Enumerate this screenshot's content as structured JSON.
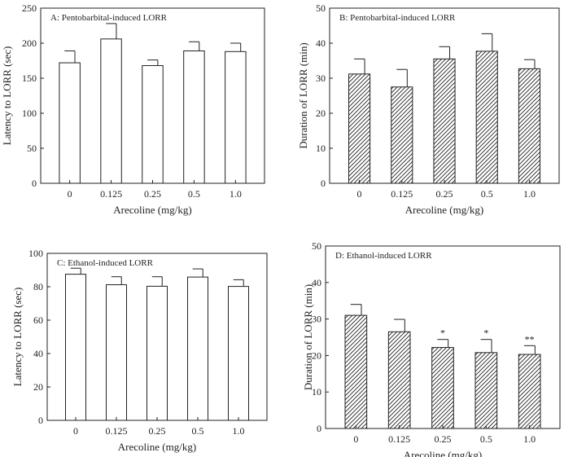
{
  "chart_data": [
    {
      "type": "bar",
      "panel": "A",
      "title": "A: Pentobarbital-induced LORR",
      "xlabel": "Arecoline (mg/kg)",
      "ylabel": "Latency  to  LORR  (sec)",
      "categories": [
        "0",
        "0.125",
        "0.25",
        "0.5",
        "1.0"
      ],
      "values": [
        172,
        206,
        168,
        189,
        188
      ],
      "errors": [
        17,
        22,
        8,
        13,
        12
      ],
      "significance": [
        "",
        "",
        "",
        "",
        ""
      ],
      "ylim": [
        0,
        250
      ],
      "yticks": [
        0,
        50,
        100,
        150,
        200,
        250
      ],
      "fill": "open"
    },
    {
      "type": "bar",
      "panel": "B",
      "title": "B: Pentobarbital-induced LORR",
      "xlabel": "Arecoline (mg/kg)",
      "ylabel": "Duration  of  LORR  (min)",
      "categories": [
        "0",
        "0.125",
        "0.25",
        "0.5",
        "1.0"
      ],
      "values": [
        31.2,
        27.5,
        35.5,
        37.7,
        32.7
      ],
      "errors": [
        4.3,
        5.0,
        3.5,
        5.0,
        2.6
      ],
      "significance": [
        "",
        "",
        "",
        "",
        ""
      ],
      "ylim": [
        0,
        50
      ],
      "yticks": [
        0,
        10,
        20,
        30,
        40,
        50
      ],
      "fill": "hatched"
    },
    {
      "type": "bar",
      "panel": "C",
      "title": "C: Ethanol-induced LORR",
      "xlabel": "Arecoline (mg/kg)",
      "ylabel": "Latency  to  LORR  (sec)",
      "categories": [
        "0",
        "0.125",
        "0.25",
        "0.5",
        "1.0"
      ],
      "values": [
        87.5,
        81.2,
        80.3,
        85.8,
        80.2
      ],
      "errors": [
        3.6,
        4.8,
        5.7,
        4.9,
        4.0
      ],
      "significance": [
        "",
        "",
        "",
        "",
        ""
      ],
      "ylim": [
        0,
        100
      ],
      "yticks": [
        0,
        20,
        40,
        60,
        80,
        100
      ],
      "fill": "open"
    },
    {
      "type": "bar",
      "panel": "D",
      "title": "D: Ethanol-induced LORR",
      "xlabel": "Arecoline (mg/kg)",
      "ylabel": "Duration  of  LORR  (min)",
      "categories": [
        "0",
        "0.125",
        "0.25",
        "0.5",
        "1.0"
      ],
      "values": [
        31.0,
        26.5,
        22.2,
        20.8,
        20.3
      ],
      "errors": [
        3.0,
        3.4,
        2.2,
        3.6,
        2.4
      ],
      "significance": [
        "",
        "",
        "*",
        "*",
        "**"
      ],
      "ylim": [
        0,
        50
      ],
      "yticks": [
        0,
        10,
        20,
        30,
        40,
        50
      ],
      "fill": "hatched"
    }
  ]
}
